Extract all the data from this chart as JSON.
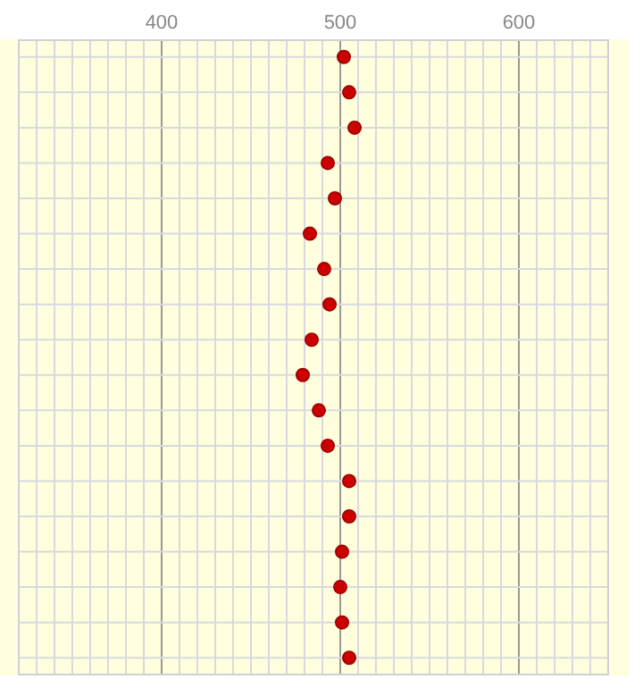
{
  "chart_data": {
    "type": "scatter",
    "orientation": "horizontal",
    "categories": [
      null,
      null,
      null,
      null,
      null,
      null,
      null,
      null,
      null,
      null,
      null,
      null,
      null,
      null,
      null,
      null,
      null,
      null
    ],
    "values": [
      502,
      505,
      508,
      493,
      497,
      483,
      491,
      494,
      484,
      479,
      488,
      493,
      505,
      505,
      501,
      500,
      501,
      505
    ],
    "color": "#cc0000",
    "marker": "circle",
    "grid": true,
    "tick_labels": "x",
    "xlim": [
      320,
      650
    ],
    "xticks": [
      {
        "value": 320,
        "label": null
      },
      {
        "value": 330,
        "label": null
      },
      {
        "value": 340,
        "label": null
      },
      {
        "value": 350,
        "label": null
      },
      {
        "value": 360,
        "label": null
      },
      {
        "value": 370,
        "label": null
      },
      {
        "value": 380,
        "label": null
      },
      {
        "value": 390,
        "label": null
      },
      400,
      {
        "value": 410,
        "label": null
      },
      {
        "value": 420,
        "label": null
      },
      {
        "value": 430,
        "label": null
      },
      {
        "value": 440,
        "label": null
      },
      {
        "value": 450,
        "label": null
      },
      {
        "value": 460,
        "label": null
      },
      {
        "value": 470,
        "label": null
      },
      {
        "value": 480,
        "label": null
      },
      {
        "value": 490,
        "label": null
      },
      500,
      {
        "value": 510,
        "label": null
      },
      {
        "value": 520,
        "label": null
      },
      {
        "value": 530,
        "label": null
      },
      {
        "value": 540,
        "label": null
      },
      {
        "value": 550,
        "label": null
      },
      {
        "value": 560,
        "label": null
      },
      {
        "value": 570,
        "label": null
      },
      {
        "value": 580,
        "label": null
      },
      {
        "value": 590,
        "label": null
      },
      600,
      {
        "value": 610,
        "label": null
      },
      {
        "value": 620,
        "label": null
      },
      {
        "value": 630,
        "label": null
      },
      {
        "value": 640,
        "label": null
      },
      {
        "value": 650,
        "label": null
      }
    ]
  }
}
